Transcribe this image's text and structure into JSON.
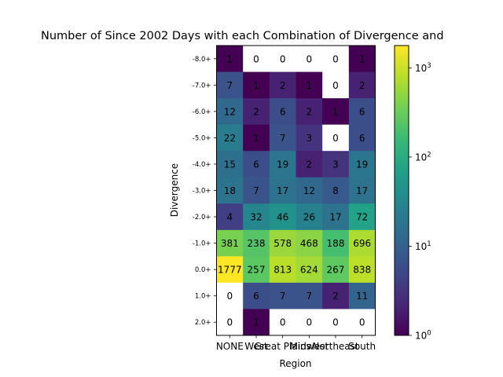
{
  "chart_data": {
    "type": "heatmap",
    "title": "Number of Since 2002 Days with each Combination of Divergence and",
    "xlabel": "Region",
    "ylabel": "Divergence",
    "x_categories": [
      "NONE",
      "West",
      "Great Plains",
      "Midwest",
      "Northeast",
      "South"
    ],
    "y_categories": [
      "-8.0+",
      "-7.0+",
      "-6.0+",
      "-5.0+",
      "-4.0+",
      "-3.0+",
      "-2.0+",
      "-1.0+",
      "0.0+",
      "1.0+",
      "2.0+"
    ],
    "values": [
      [
        1,
        0,
        0,
        0,
        0,
        1
      ],
      [
        7,
        1,
        2,
        1,
        0,
        2
      ],
      [
        12,
        2,
        6,
        2,
        1,
        6
      ],
      [
        22,
        1,
        7,
        3,
        0,
        6
      ],
      [
        15,
        6,
        19,
        2,
        3,
        19
      ],
      [
        18,
        7,
        17,
        12,
        8,
        17
      ],
      [
        4,
        32,
        46,
        26,
        17,
        72
      ],
      [
        381,
        238,
        578,
        468,
        188,
        696
      ],
      [
        1777,
        257,
        813,
        624,
        267,
        838
      ],
      [
        0,
        6,
        7,
        7,
        2,
        11
      ],
      [
        0,
        1,
        0,
        0,
        0,
        0
      ]
    ],
    "color_scale": {
      "type": "log",
      "colormap": "viridis",
      "min": 1,
      "max": 1777,
      "zero_color": "#ffffff"
    },
    "colorbar": {
      "tick_labels": [
        "10^0",
        "10^1",
        "10^2",
        "10^3"
      ],
      "tick_values": [
        1,
        10,
        100,
        1000
      ]
    },
    "grid": false,
    "legend": "colorbar-right"
  }
}
